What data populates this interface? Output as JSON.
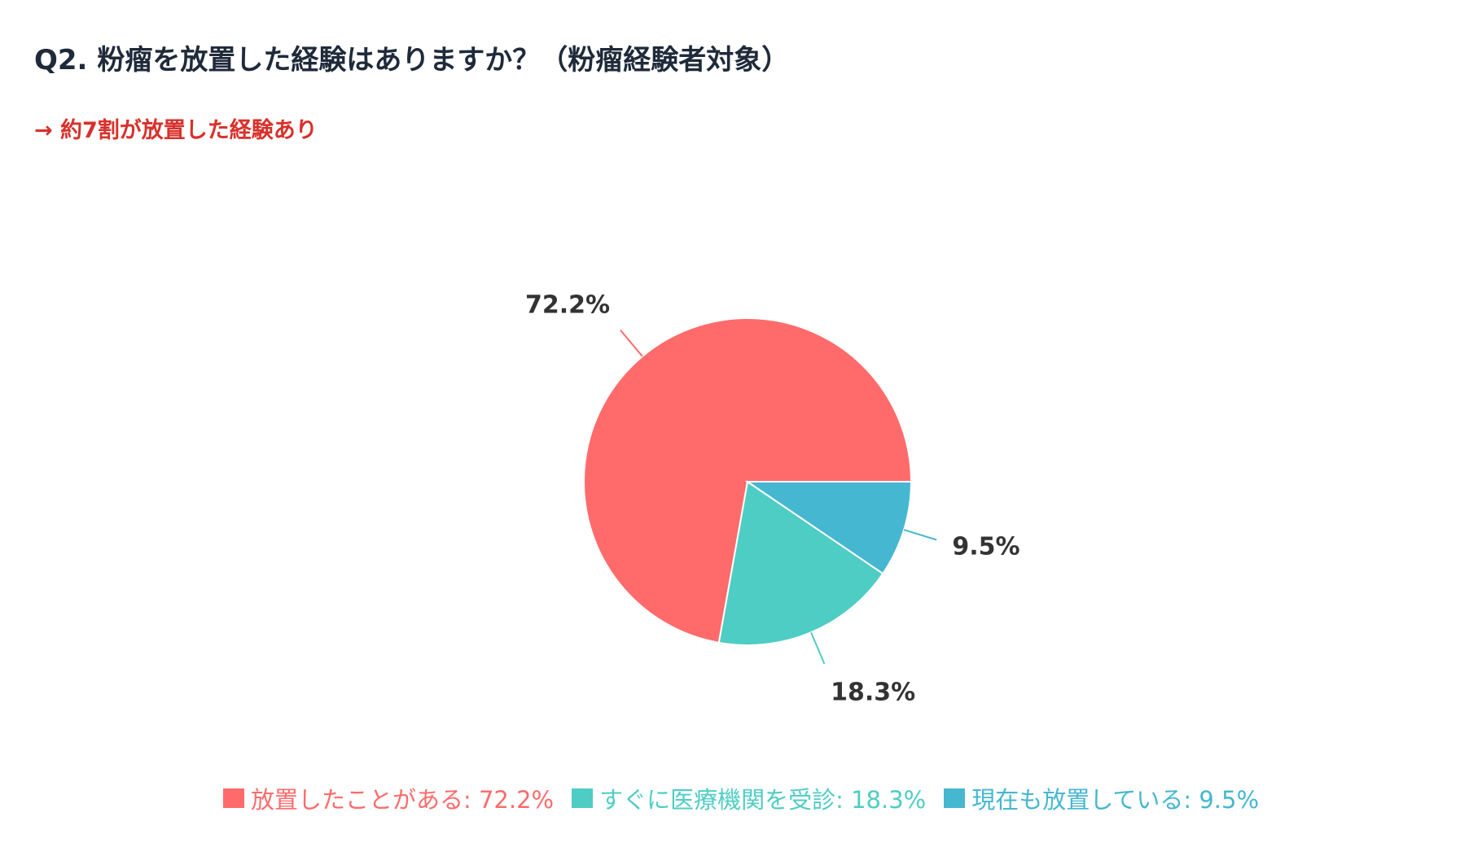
{
  "header": {
    "title": "Q2. 粉瘤を放置した経験はありますか？（粉瘤経験者対象）",
    "subtitle": "→ 約7割が放置した経験あり"
  },
  "chart_data": {
    "type": "pie",
    "categories": [
      "放置したことがある",
      "すぐに医療機関を受診",
      "現在も放置している"
    ],
    "values": [
      72.2,
      18.3,
      9.5
    ],
    "value_labels": [
      "72.2%",
      "18.3%",
      "9.5%"
    ],
    "colors": [
      "#ff6b6b",
      "#4ecdc4",
      "#45b7d1"
    ],
    "legend": [
      "放置したことがある: 72.2%",
      "すぐに医療機関を受診: 18.3%",
      "現在も放置している: 9.5%"
    ],
    "legend_position": "bottom",
    "start_direction": "3 o'clock, counter-clockwise"
  }
}
